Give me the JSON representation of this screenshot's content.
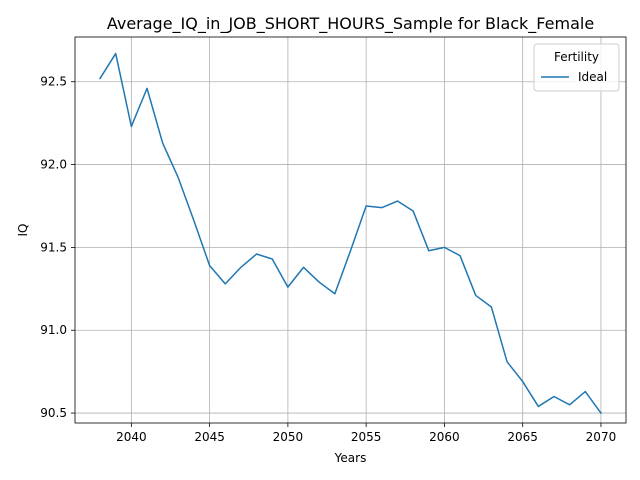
{
  "chart_data": {
    "type": "line",
    "title": "Average_IQ_in_JOB_SHORT_HOURS_Sample for Black_Female",
    "xlabel": "Years",
    "ylabel": "IQ",
    "xlim": [
      2036.4,
      2071.6
    ],
    "ylim": [
      90.44,
      92.77
    ],
    "xticks": [
      2040,
      2045,
      2050,
      2055,
      2060,
      2065,
      2070
    ],
    "yticks": [
      90.5,
      91.0,
      91.5,
      92.0,
      92.5
    ],
    "ytick_labels": [
      "90.5",
      "91.0",
      "91.5",
      "92.0",
      "92.5"
    ],
    "grid": true,
    "legend": {
      "title": "Fertility",
      "position": "top-right"
    },
    "series": [
      {
        "name": "Ideal",
        "color": "#1f77b4",
        "x": [
          2038,
          2039,
          2040,
          2041,
          2042,
          2043,
          2044,
          2045,
          2046,
          2047,
          2048,
          2049,
          2050,
          2051,
          2052,
          2053,
          2054,
          2055,
          2056,
          2057,
          2058,
          2059,
          2060,
          2061,
          2062,
          2063,
          2064,
          2065,
          2066,
          2067,
          2068,
          2069,
          2070
        ],
        "y": [
          92.52,
          92.67,
          92.23,
          92.46,
          92.13,
          91.92,
          91.66,
          91.39,
          91.28,
          91.38,
          91.46,
          91.43,
          91.26,
          91.38,
          91.29,
          91.22,
          91.48,
          91.75,
          91.74,
          91.78,
          91.72,
          91.48,
          91.5,
          91.45,
          91.21,
          91.14,
          90.81,
          90.69,
          90.54,
          90.6,
          90.55,
          90.63,
          90.5
        ]
      }
    ]
  }
}
